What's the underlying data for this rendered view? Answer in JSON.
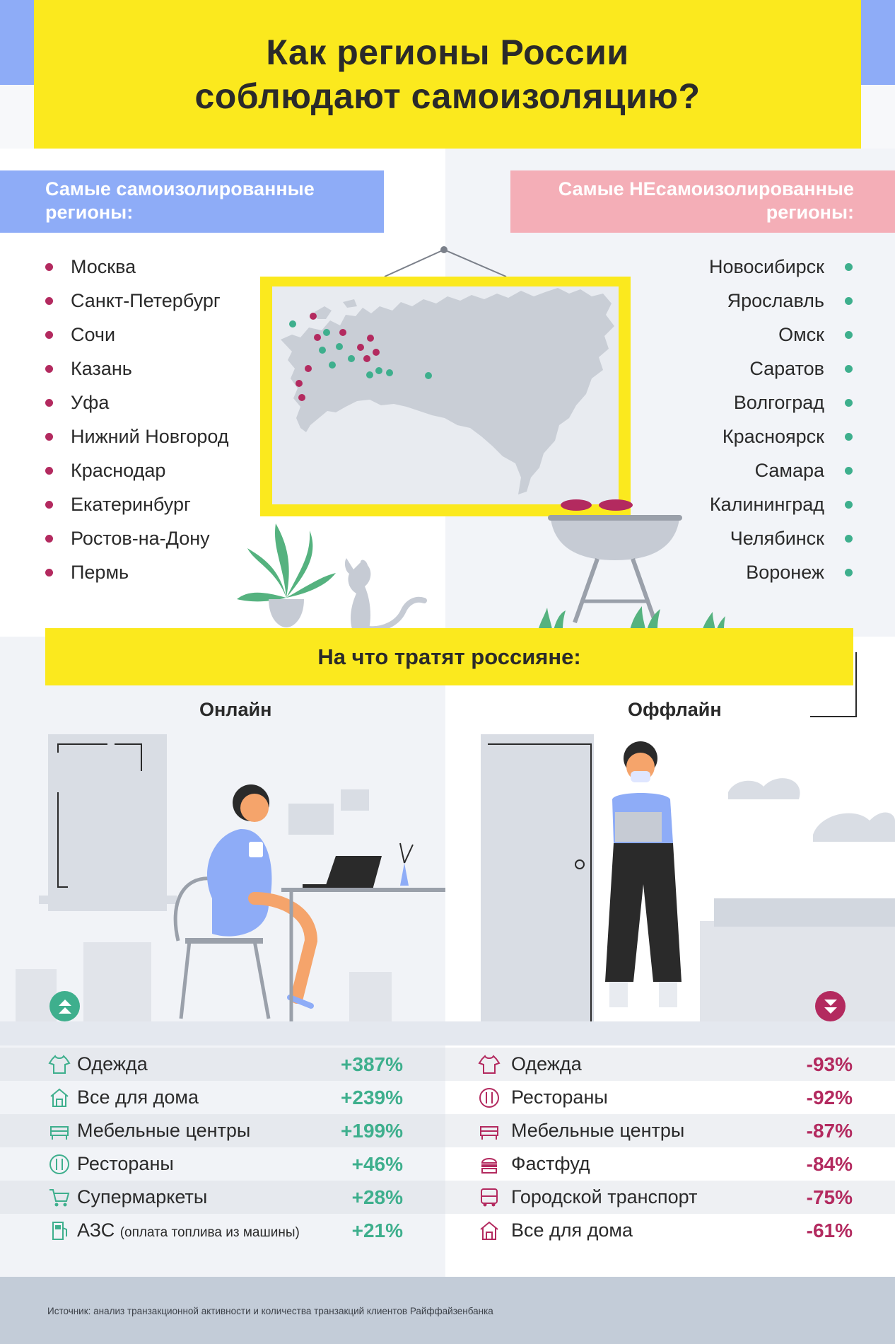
{
  "header": {
    "title": "Как регионы России\nсоблюдают самоизоляцию?"
  },
  "regions": {
    "left_label": "Самые самоизолированные регионы:",
    "right_label": "Самые НЕсамоизолированные регионы:",
    "most_isolated": [
      "Москва",
      "Санкт-Петербург",
      "Сочи",
      "Казань",
      "Уфа",
      "Нижний Новгород",
      "Краснодар",
      "Екатеринбург",
      "Ростов-на-Дону",
      "Пермь"
    ],
    "least_isolated": [
      "Новосибирск",
      "Ярославль",
      "Омск",
      "Саратов",
      "Волгоград",
      "Красноярск",
      "Самара",
      "Калининград",
      "Челябинск",
      "Воронеж"
    ],
    "colors": {
      "isolated": "#b32a5f",
      "not_isolated": "#3eaf8d"
    }
  },
  "spending": {
    "title": "На что тратят россияне:",
    "online_label": "Онлайн",
    "offline_label": "Оффлайн",
    "online": [
      {
        "icon": "clothes-icon",
        "label": "Одежда",
        "note": "",
        "value": "+387%"
      },
      {
        "icon": "home-goods-icon",
        "label": "Все для дома",
        "note": "",
        "value": "+239%"
      },
      {
        "icon": "furniture-icon",
        "label": "Мебельные центры",
        "note": "",
        "value": "+199%"
      },
      {
        "icon": "restaurant-icon",
        "label": "Рестораны",
        "note": "",
        "value": "+46%"
      },
      {
        "icon": "cart-icon",
        "label": "Супермаркеты",
        "note": "",
        "value": "+28%"
      },
      {
        "icon": "fuel-icon",
        "label": "АЗС",
        "note": "(оплата топлива из машины)",
        "value": "+21%"
      }
    ],
    "offline": [
      {
        "icon": "clothes-icon",
        "label": "Одежда",
        "value": "-93%"
      },
      {
        "icon": "restaurant-icon",
        "label": "Рестораны",
        "value": "-92%"
      },
      {
        "icon": "furniture-icon",
        "label": "Мебельные центры",
        "value": "-87%"
      },
      {
        "icon": "fastfood-icon",
        "label": "Фастфуд",
        "value": "-84%"
      },
      {
        "icon": "bus-icon",
        "label": "Городской транспорт",
        "value": "-75%"
      },
      {
        "icon": "home-goods-icon",
        "label": "Все для дома",
        "value": "-61%"
      }
    ]
  },
  "footer": {
    "source": "Источник: анализ транзакционной активности и количества транзакций клиентов Райффайзенбанка"
  }
}
